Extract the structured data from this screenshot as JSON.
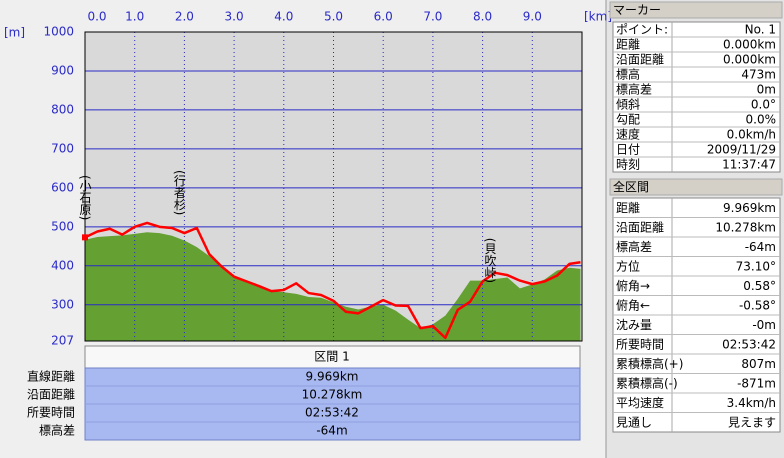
{
  "chart_data": {
    "type": "profile",
    "x_unit": "[km]",
    "y_unit": "[m]",
    "x": [
      0,
      0.25,
      0.5,
      0.75,
      1,
      1.25,
      1.5,
      1.75,
      2,
      2.25,
      2.5,
      2.75,
      3,
      3.25,
      3.5,
      3.75,
      4,
      4.25,
      4.5,
      4.75,
      5,
      5.25,
      5.5,
      5.75,
      6,
      6.25,
      6.5,
      6.75,
      7,
      7.25,
      7.5,
      7.75,
      8,
      8.25,
      8.5,
      8.75,
      9,
      9.25,
      9.5,
      9.75,
      9.969
    ],
    "series": [
      {
        "color": "#64a032",
        "fill": true,
        "values": [
          467,
          474,
          476,
          478,
          482,
          486,
          484,
          477,
          465,
          448,
          425,
          400,
          375,
          360,
          350,
          336,
          332,
          328,
          320,
          318,
          306,
          295,
          288,
          296,
          300,
          285,
          262,
          240,
          250,
          272,
          315,
          362,
          362,
          366,
          370,
          342,
          352,
          365,
          388,
          395,
          392
        ]
      },
      {
        "color": "#ff0000",
        "fill": false,
        "values": [
          473,
          488,
          495,
          480,
          500,
          510,
          500,
          497,
          484,
          497,
          430,
          398,
          372,
          360,
          348,
          335,
          338,
          355,
          330,
          325,
          310,
          282,
          278,
          295,
          312,
          298,
          297,
          240,
          245,
          215,
          287,
          308,
          360,
          382,
          376,
          362,
          353,
          360,
          375,
          405,
          409
        ]
      }
    ],
    "xlim": [
      0,
      10
    ],
    "xticks": [
      {
        "value": 0,
        "label": "0.0"
      },
      {
        "value": 1,
        "label": "1.0"
      },
      {
        "value": 2,
        "label": "2.0"
      },
      {
        "value": 3,
        "label": "3.0"
      },
      {
        "value": 4,
        "label": "4.0"
      },
      {
        "value": 5,
        "label": "5.0"
      },
      {
        "value": 6,
        "label": "6.0"
      },
      {
        "value": 7,
        "label": "7.0"
      },
      {
        "value": 8,
        "label": "8.0"
      },
      {
        "value": 9,
        "label": "9.0"
      }
    ],
    "ylim": [
      207,
      1000
    ],
    "yticks": [
      207,
      300,
      400,
      500,
      600,
      700,
      800,
      900,
      1000
    ],
    "grid": true,
    "marker": {
      "x": 0,
      "y": 473,
      "color": "#ff0000"
    },
    "annotations": [
      {
        "text": "(小石原)",
        "x": 0,
        "y": 633
      },
      {
        "text": "(行者杉)",
        "x": 1.9,
        "y": 646
      },
      {
        "text": "(貝吹峠)",
        "x": 8.15,
        "y": 472
      }
    ]
  },
  "section_table": {
    "title": "区間 1",
    "rows": [
      [
        "直線距離",
        "9.969km"
      ],
      [
        "沿面距離",
        "10.278km"
      ],
      [
        "所要時間",
        "02:53:42"
      ],
      [
        "標高差",
        "-64m"
      ]
    ]
  },
  "marker_panel": {
    "title": "マーカー",
    "rows": [
      [
        "ポイント:",
        "No. 1"
      ],
      [
        "距離",
        "0.000km"
      ],
      [
        "沿面距離",
        "0.000km"
      ],
      [
        "標高",
        "473m"
      ],
      [
        "標高差",
        "0m"
      ],
      [
        "傾斜",
        "0.0°"
      ],
      [
        "勾配",
        "0.0%"
      ],
      [
        "速度",
        "0.0km/h"
      ],
      [
        "日付",
        "2009/11/29"
      ],
      [
        "時刻",
        "11:37:47"
      ]
    ]
  },
  "total_panel": {
    "title": "全区間",
    "rows": [
      [
        "距離",
        "9.969km"
      ],
      [
        "沿面距離",
        "10.278km"
      ],
      [
        "標高差",
        "-64m"
      ],
      [
        "方位",
        "73.10°"
      ],
      [
        "俯角→",
        "0.58°"
      ],
      [
        "俯角←",
        "-0.58°"
      ],
      [
        "沈み量",
        "-0m"
      ],
      [
        "所要時間",
        "02:53:42"
      ],
      [
        "累積標高(+)",
        "807m"
      ],
      [
        "累積標高(-)",
        "-871m"
      ],
      [
        "平均速度",
        "3.4km/h"
      ],
      [
        "見通し",
        "見えます"
      ]
    ]
  }
}
